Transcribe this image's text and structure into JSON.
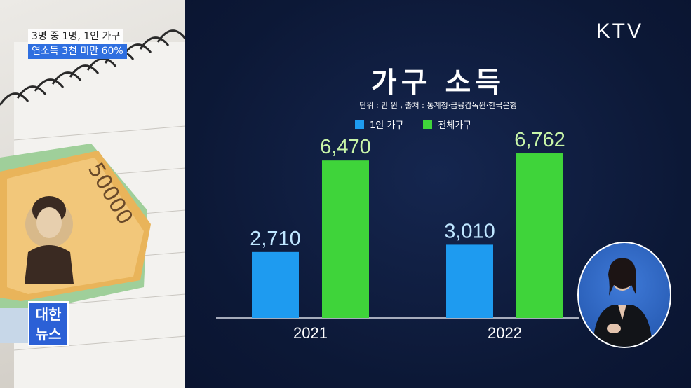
{
  "caption": {
    "line1": "3명 중 1명, 1인 가구",
    "line2": "연소득 3천 미만 60%"
  },
  "channel_logo": "KTV",
  "news_badge": {
    "line1": "대한",
    "line2": "뉴스"
  },
  "chart_data": {
    "type": "bar",
    "title": "가구 소득",
    "source": "단위 : 만 원 , 출처 : 통계청·금융감독원·한국은행",
    "categories": [
      "2021",
      "2022"
    ],
    "series": [
      {
        "name": "1인 가구",
        "values": [
          2710,
          3010
        ],
        "color": "#1e9bf0"
      },
      {
        "name": "전체가구",
        "values": [
          6470,
          6762
        ],
        "color": "#3fd43a"
      }
    ],
    "value_labels": {
      "1인 가구": [
        "2,710",
        "3,010"
      ],
      "전체가구": [
        "6,470",
        "6,762"
      ]
    },
    "value_label_colors": {
      "1인 가구": "#bfe6ff",
      "전체가구": "#c8f5a8"
    },
    "ylim": [
      0,
      8000
    ],
    "grid": false,
    "legend_position": "top-center"
  }
}
